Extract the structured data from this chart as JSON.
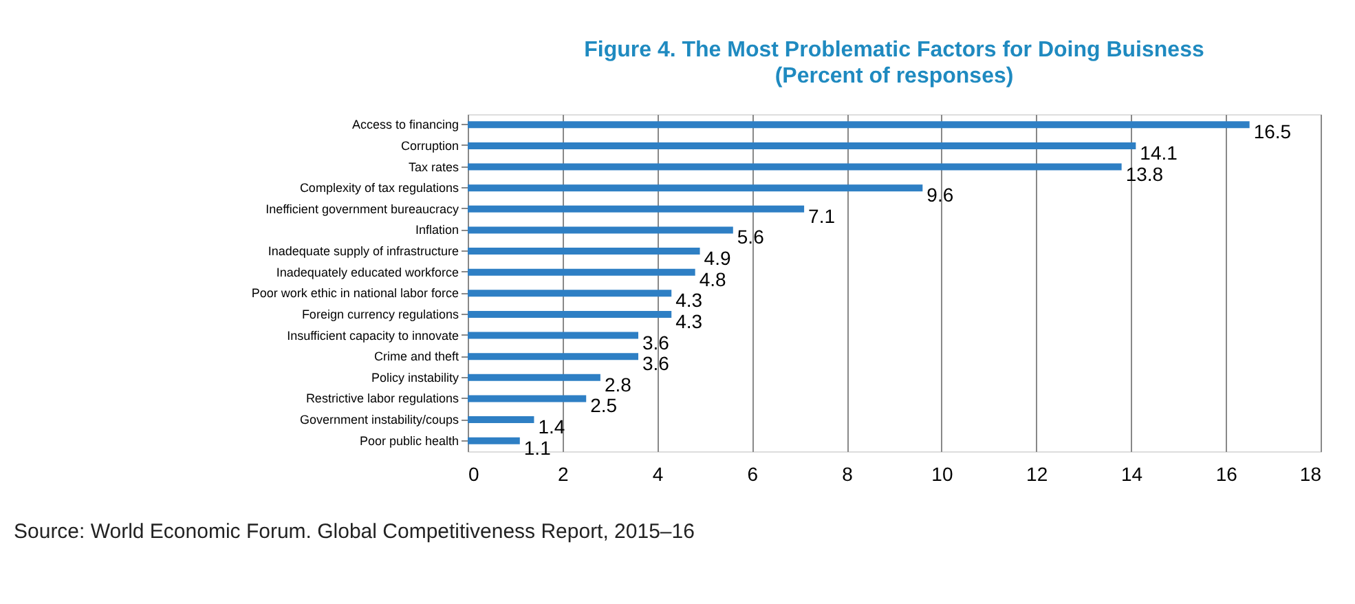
{
  "chart_data": {
    "type": "bar",
    "orientation": "horizontal",
    "title": "Figure 4. The Most Problematic Factors for Doing Buisness",
    "subtitle": "(Percent of responses)",
    "categories": [
      "Access to financing",
      "Corruption",
      "Tax rates",
      "Complexity of tax regulations",
      "Inefficient government bureaucracy",
      "Inflation",
      "Inadequate supply of infrastructure",
      "Inadequately educated workforce",
      "Poor work ethic in national labor force",
      "Foreign currency regulations",
      "Insufficient capacity to innovate",
      "Crime and theft",
      "Policy instability",
      "Restrictive labor regulations",
      "Government instability/coups",
      "Poor public health"
    ],
    "values": [
      16.5,
      14.1,
      13.8,
      9.6,
      7.1,
      5.6,
      4.9,
      4.8,
      4.3,
      4.3,
      3.6,
      3.6,
      2.8,
      2.5,
      1.4,
      1.1
    ],
    "color": "#2e7fc4",
    "xlim": [
      0,
      18
    ],
    "xticks": [
      0,
      2,
      4,
      6,
      8,
      10,
      12,
      14,
      16,
      18
    ],
    "grid": "x",
    "data_labels": true,
    "annotations": [
      "Source: World Economic Forum. Global Competitiveness Report, 2015–16"
    ]
  }
}
